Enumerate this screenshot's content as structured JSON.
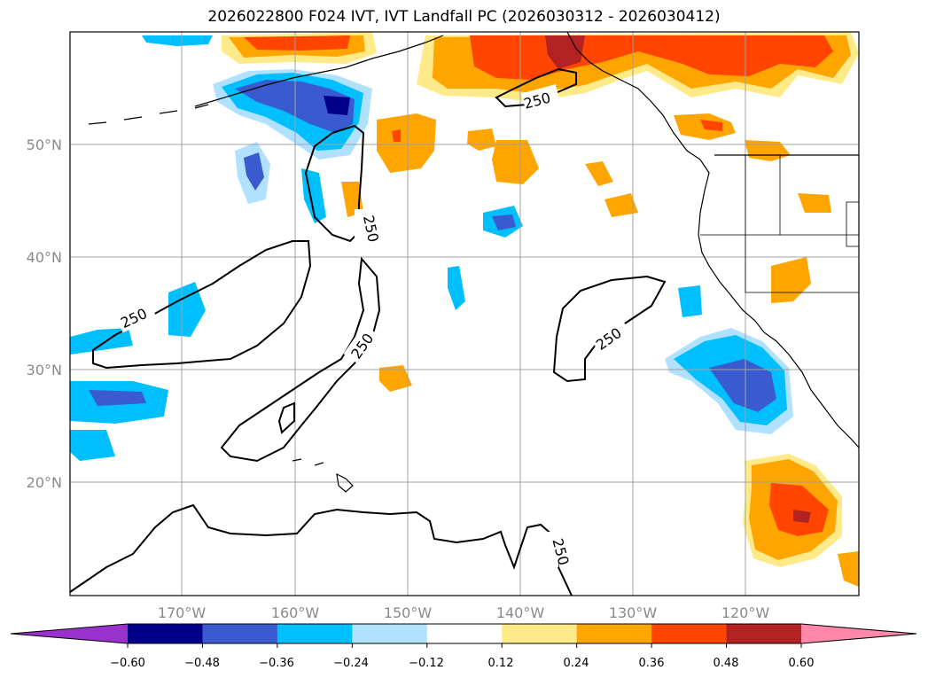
{
  "title": "2026022800 F024 IVT, IVT Landfall PC (2026030312 - 2026030412)",
  "lat_labels": [
    "50°N",
    "40°N",
    "30°N",
    "20°N"
  ],
  "lon_labels": [
    "170°W",
    "160°W",
    "150°W",
    "140°W",
    "130°W",
    "120°W"
  ],
  "contour_label": "250",
  "colorbar": {
    "ticks": [
      "−0.60",
      "−0.48",
      "−0.36",
      "−0.24",
      "−0.12",
      "0.12",
      "0.24",
      "0.36",
      "0.48",
      "0.60"
    ],
    "colors": [
      "#9932cc",
      "#00008b",
      "#3a5bd0",
      "#00bfff",
      "#b0e2ff",
      "#ffffff",
      "#ffea8a",
      "#ffa500",
      "#ff4500",
      "#b22222",
      "#ff88aa"
    ]
  },
  "colors": {
    "neg1": "#3a5bd0",
    "neg2": "#00bfff",
    "neg3": "#b0e2ff",
    "pos1": "#ffea8a",
    "pos2": "#ffa500",
    "pos3": "#ff4500",
    "pos4": "#b22222"
  }
}
